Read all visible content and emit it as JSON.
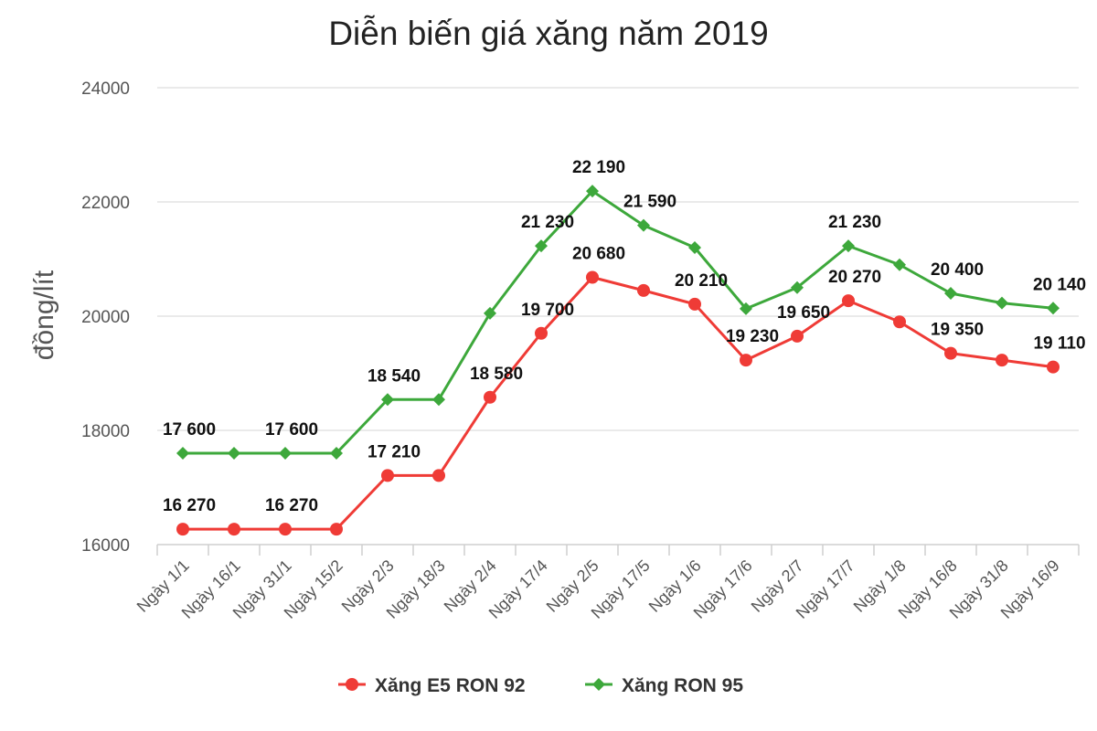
{
  "chart_data": {
    "type": "line",
    "title": "Diễn biến giá xăng năm 2019",
    "ylabel": "đồng/lít",
    "xlabel": "",
    "ylim": [
      16000,
      24000
    ],
    "yticks": [
      "16000",
      "18000",
      "20000",
      "22000",
      "24000"
    ],
    "categories": [
      "Ngày 1/1",
      "Ngày 16/1",
      "Ngày 31/1",
      "Ngày 15/2",
      "Ngày 2/3",
      "Ngày 18/3",
      "Ngày 2/4",
      "Ngày 17/4",
      "Ngày 2/5",
      "Ngày 17/5",
      "Ngày 1/6",
      "Ngày 17/6",
      "Ngày 2/7",
      "Ngày 17/7",
      "Ngày 1/8",
      "Ngày 16/8",
      "Ngày 31/8",
      "Ngày 16/9"
    ],
    "grid": true,
    "legend_position": "bottom",
    "series": [
      {
        "name": "Xăng E5 RON 92",
        "color": "#ef3b36",
        "marker": "circle",
        "values": [
          16270,
          16270,
          16270,
          16270,
          17210,
          17210,
          18580,
          19700,
          20680,
          20450,
          20210,
          19230,
          19650,
          20270,
          19900,
          19350,
          19230,
          19110
        ],
        "labels": [
          "16 270",
          "",
          "16 270",
          "",
          "17 210",
          "",
          "18 580",
          "19 700",
          "20 680",
          "",
          "20 210",
          "19 230",
          "19 650",
          "20 270",
          "",
          "19 350",
          "",
          "19 110"
        ]
      },
      {
        "name": "Xăng RON 95",
        "color": "#3da83b",
        "marker": "diamond",
        "values": [
          17600,
          17600,
          17600,
          17600,
          18540,
          18540,
          20050,
          21230,
          22190,
          21590,
          21200,
          20130,
          20500,
          21230,
          20900,
          20400,
          20230,
          20140
        ],
        "labels": [
          "17 600",
          "",
          "17 600",
          "",
          "18 540",
          "",
          "",
          "21 230",
          "22 190",
          "21 590",
          "",
          "",
          "",
          "21 230",
          "",
          "20 400",
          "",
          "20 140"
        ]
      }
    ]
  }
}
